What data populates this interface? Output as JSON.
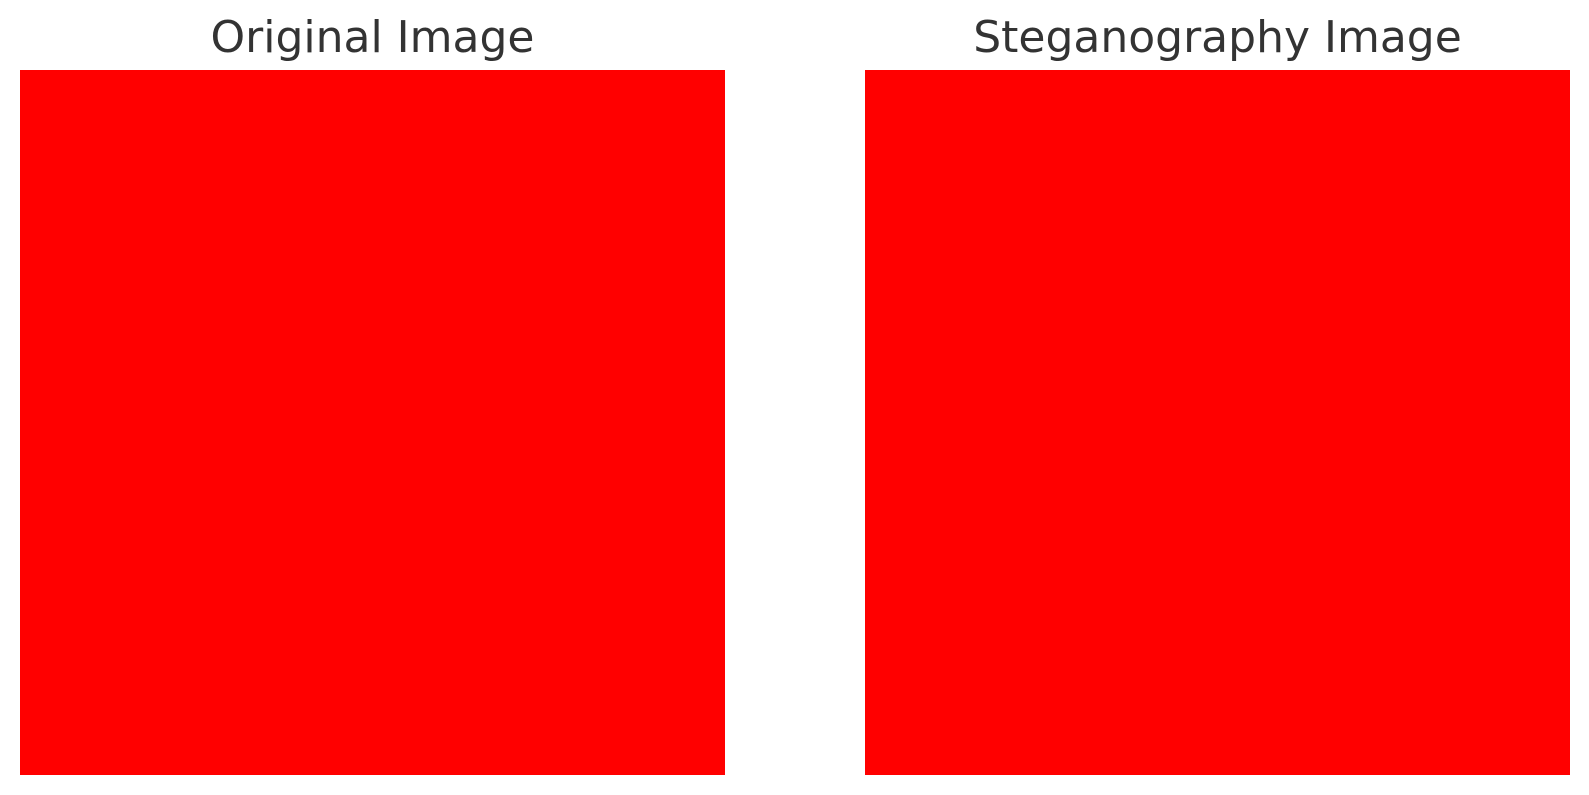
{
  "panels": [
    {
      "title": "Original Image",
      "fill_color": "#ff0000"
    },
    {
      "title": "Steganography Image",
      "fill_color": "#ff0000"
    }
  ]
}
